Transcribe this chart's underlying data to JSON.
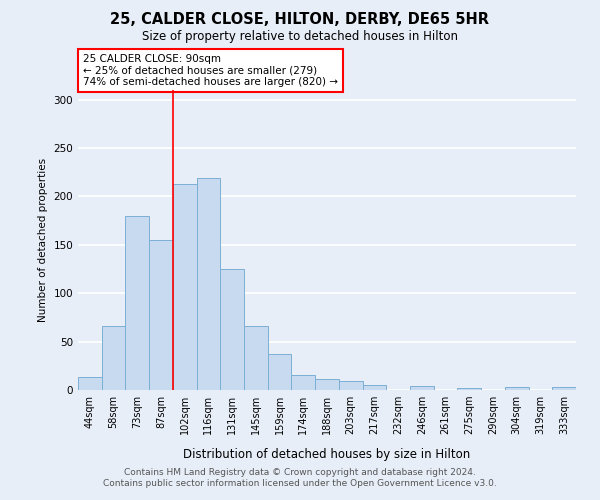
{
  "title1": "25, CALDER CLOSE, HILTON, DERBY, DE65 5HR",
  "title2": "Size of property relative to detached houses in Hilton",
  "xlabel": "Distribution of detached houses by size in Hilton",
  "ylabel": "Number of detached properties",
  "categories": [
    "44sqm",
    "58sqm",
    "73sqm",
    "87sqm",
    "102sqm",
    "116sqm",
    "131sqm",
    "145sqm",
    "159sqm",
    "174sqm",
    "188sqm",
    "203sqm",
    "217sqm",
    "232sqm",
    "246sqm",
    "261sqm",
    "275sqm",
    "290sqm",
    "304sqm",
    "319sqm",
    "333sqm"
  ],
  "values": [
    13,
    66,
    180,
    155,
    213,
    219,
    125,
    66,
    37,
    15,
    11,
    9,
    5,
    0,
    4,
    0,
    2,
    0,
    3,
    0,
    3
  ],
  "bar_color": "#c8daf0",
  "bar_edge_color": "#7bafd4",
  "annotation_text": "25 CALDER CLOSE: 90sqm\n← 25% of detached houses are smaller (279)\n74% of semi-detached houses are larger (820) →",
  "annotation_box_color": "white",
  "annotation_box_edge": "red",
  "ylim": [
    0,
    310
  ],
  "yticks": [
    0,
    50,
    100,
    150,
    200,
    250,
    300
  ],
  "footer": "Contains HM Land Registry data © Crown copyright and database right 2024.\nContains public sector information licensed under the Open Government Licence v3.0.",
  "bg_color": "#e8eef8",
  "plot_bg_color": "#e8eef8",
  "grid_color": "white",
  "red_line_index": 3
}
